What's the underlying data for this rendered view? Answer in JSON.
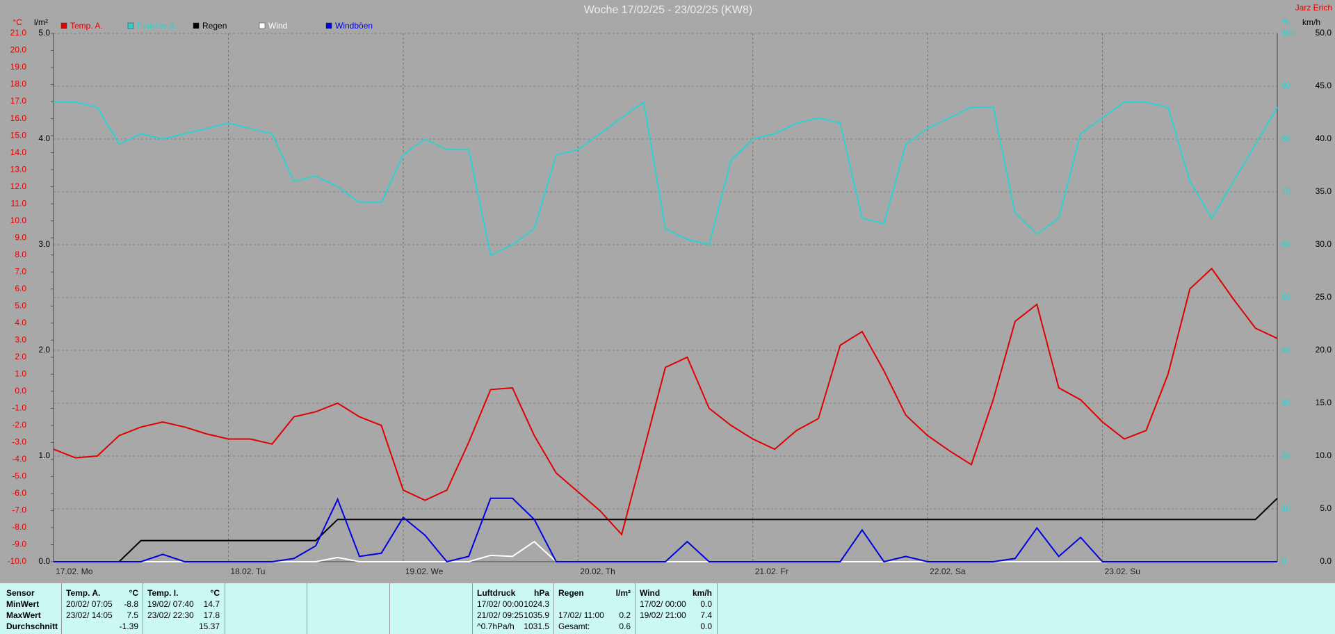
{
  "chart_data": {
    "type": "line",
    "title": "Woche 17/02/25 - 23/02/25 (KW8)",
    "author": "Jarz Erich",
    "ylabel": "°C",
    "rain_label": "l/m²",
    "humidity_label": "%",
    "y2label": "km/h",
    "x": [
      0,
      3,
      6,
      9,
      12,
      15,
      18,
      21,
      24,
      27,
      30,
      33,
      36,
      39,
      42,
      45,
      48,
      51,
      54,
      57,
      60,
      63,
      66,
      69,
      72,
      75,
      78,
      81,
      84,
      87,
      90,
      93,
      96,
      99,
      102,
      105,
      108,
      111,
      114,
      117,
      120,
      123,
      126,
      129,
      132,
      135,
      138,
      141,
      144,
      147,
      150,
      153,
      156,
      159,
      162,
      165,
      168
    ],
    "xlim": [
      0,
      168
    ],
    "xticks": [
      {
        "value": 0,
        "label": "17.02. Mo"
      },
      {
        "value": 24,
        "label": "18.02. Tu"
      },
      {
        "value": 48,
        "label": "19.02. We"
      },
      {
        "value": 72,
        "label": "20.02. Th"
      },
      {
        "value": 96,
        "label": "21.02. Fr"
      },
      {
        "value": 120,
        "label": "22.02. Sa"
      },
      {
        "value": 144,
        "label": "23.02. Su"
      }
    ],
    "ylim": [
      -10,
      21
    ],
    "yticks": [
      {
        "value": -10,
        "label": "-10.0"
      },
      {
        "value": -9,
        "label": "-9.0"
      },
      {
        "value": -8,
        "label": "-8.0"
      },
      {
        "value": -7,
        "label": "-7.0"
      },
      {
        "value": -6,
        "label": "-6.0"
      },
      {
        "value": -5,
        "label": "-5.0"
      },
      {
        "value": -4,
        "label": "-4.0"
      },
      {
        "value": -3,
        "label": "-3.0"
      },
      {
        "value": -2,
        "label": "-2.0"
      },
      {
        "value": -1,
        "label": "-1.0"
      },
      {
        "value": 0,
        "label": "0.0"
      },
      {
        "value": 1,
        "label": "1.0"
      },
      {
        "value": 2,
        "label": "2.0"
      },
      {
        "value": 3,
        "label": "3.0"
      },
      {
        "value": 4,
        "label": "4.0"
      },
      {
        "value": 5,
        "label": "5.0"
      },
      {
        "value": 6,
        "label": "6.0"
      },
      {
        "value": 7,
        "label": "7.0"
      },
      {
        "value": 8,
        "label": "8.0"
      },
      {
        "value": 9,
        "label": "9.0"
      },
      {
        "value": 10,
        "label": "10.0"
      },
      {
        "value": 11,
        "label": "11.0"
      },
      {
        "value": 12,
        "label": "12.0"
      },
      {
        "value": 13,
        "label": "13.0"
      },
      {
        "value": 14,
        "label": "14.0"
      },
      {
        "value": 15,
        "label": "15.0"
      },
      {
        "value": 16,
        "label": "16.0"
      },
      {
        "value": 17,
        "label": "17.0"
      },
      {
        "value": 18,
        "label": "18.0"
      },
      {
        "value": 19,
        "label": "19.0"
      },
      {
        "value": 20,
        "label": "20.0"
      },
      {
        "value": 21,
        "label": "21.0"
      }
    ],
    "rain_lim": [
      0,
      5
    ],
    "rain_ticks": [
      {
        "value": 0,
        "label": "0.0"
      },
      {
        "value": 1,
        "label": "1.0"
      },
      {
        "value": 2,
        "label": "2.0"
      },
      {
        "value": 3,
        "label": "3.0"
      },
      {
        "value": 4,
        "label": "4.0"
      },
      {
        "value": 5,
        "label": "5.0"
      }
    ],
    "humidity_lim": [
      0,
      100
    ],
    "humidity_ticks": [
      0,
      10,
      20,
      30,
      40,
      50,
      60,
      70,
      80,
      90,
      100
    ],
    "y2lim": [
      0,
      50
    ],
    "y2ticks": [
      {
        "value": 0,
        "label": "0.0"
      },
      {
        "value": 5,
        "label": "5.0"
      },
      {
        "value": 10,
        "label": "10.0"
      },
      {
        "value": 15,
        "label": "15.0"
      },
      {
        "value": 20,
        "label": "20.0"
      },
      {
        "value": 25,
        "label": "25.0"
      },
      {
        "value": 30,
        "label": "30.0"
      },
      {
        "value": 35,
        "label": "35.0"
      },
      {
        "value": 40,
        "label": "40.0"
      },
      {
        "value": 45,
        "label": "45.0"
      },
      {
        "value": 50,
        "label": "50.0"
      }
    ],
    "grid": true,
    "series": [
      {
        "name": "Temp. A.",
        "color": "#e00000",
        "axis": "y",
        "values": [
          -3.4,
          -3.9,
          -3.8,
          -2.6,
          -2.1,
          -1.8,
          -2.1,
          -2.5,
          -2.8,
          -2.8,
          -3.1,
          -1.5,
          -1.2,
          -0.7,
          -1.5,
          -2.0,
          -5.8,
          -6.4,
          -5.8,
          -3.0,
          0.1,
          0.2,
          -2.6,
          -4.8,
          -5.9,
          -7.0,
          -8.4,
          -3.5,
          1.4,
          2.0,
          -1.0,
          -2.0,
          -2.8,
          -3.4,
          -2.3,
          -1.6,
          2.7,
          3.5,
          1.2,
          -1.4,
          -2.6,
          -3.5,
          -4.3,
          -0.5,
          4.1,
          5.1,
          0.2,
          -0.5,
          -1.8,
          -2.8,
          -2.3,
          1.0,
          6.0,
          7.2,
          5.4,
          3.7,
          3.1
        ]
      },
      {
        "name": "Feuchte A.",
        "color": "#30d0d0",
        "axis": "humidity",
        "values": [
          87,
          87,
          86,
          79,
          81,
          80,
          81,
          82,
          83,
          82,
          81,
          72,
          73,
          71,
          68,
          68,
          77,
          80,
          78,
          78,
          58,
          60,
          63,
          77,
          78,
          81,
          84,
          87,
          63,
          61,
          60,
          76,
          80,
          81,
          83,
          84,
          83,
          65,
          64,
          79,
          82,
          84,
          86,
          86,
          66,
          62,
          65,
          81,
          84,
          87,
          87,
          86,
          72,
          65,
          72,
          79,
          86
        ]
      },
      {
        "name": "Regen",
        "color": "#000000",
        "axis": "rain",
        "values": [
          0,
          0,
          0,
          0,
          0.2,
          0.2,
          0.2,
          0.2,
          0.2,
          0.2,
          0.2,
          0.2,
          0.2,
          0.4,
          0.4,
          0.4,
          0.4,
          0.4,
          0.4,
          0.4,
          0.4,
          0.4,
          0.4,
          0.4,
          0.4,
          0.4,
          0.4,
          0.4,
          0.4,
          0.4,
          0.4,
          0.4,
          0.4,
          0.4,
          0.4,
          0.4,
          0.4,
          0.4,
          0.4,
          0.4,
          0.4,
          0.4,
          0.4,
          0.4,
          0.4,
          0.4,
          0.4,
          0.4,
          0.4,
          0.4,
          0.4,
          0.4,
          0.4,
          0.4,
          0.4,
          0.4,
          0.6
        ]
      },
      {
        "name": "Wind",
        "color": "#ffffff",
        "axis": "y2",
        "values": [
          0,
          0,
          0,
          0,
          0,
          0,
          0,
          0,
          0,
          0,
          0,
          0,
          0,
          0.4,
          0,
          0,
          0,
          0,
          0,
          0,
          0.6,
          0.5,
          1.9,
          0,
          0,
          0,
          0,
          0,
          0,
          0,
          0,
          0,
          0,
          0,
          0,
          0,
          0,
          0,
          0,
          0,
          0,
          0,
          0,
          0,
          0,
          0,
          0,
          0,
          0,
          0,
          0,
          0,
          0,
          0,
          0,
          0,
          0
        ]
      },
      {
        "name": "Windböen",
        "color": "#0000e0",
        "axis": "y2",
        "values": [
          0,
          0,
          0,
          0,
          0,
          0.7,
          0,
          0,
          0,
          0,
          0,
          0.3,
          1.5,
          5.9,
          0.5,
          0.8,
          4.2,
          2.5,
          0,
          0.5,
          6.0,
          6.0,
          4.0,
          0,
          0,
          0,
          0,
          0,
          0,
          1.9,
          0,
          0,
          0,
          0,
          0,
          0,
          0,
          3.0,
          0,
          0.5,
          0,
          0,
          0,
          0,
          0.3,
          3.2,
          0.5,
          2.3,
          0,
          0,
          0,
          0,
          0,
          0,
          0,
          0,
          0
        ]
      }
    ]
  },
  "footer": {
    "sensor_title": "Sensor",
    "row_labels": [
      "MinWert",
      "MaxWert",
      "Durchschnitt"
    ],
    "blocks": [
      {
        "title": "Temp. A.",
        "unit": "°C",
        "rows": [
          {
            "date": "20/02/ 07:05",
            "value": "-8.8"
          },
          {
            "date": "23/02/ 14:05",
            "value": "7.5"
          },
          {
            "value": "-1.39"
          }
        ]
      },
      {
        "title": "Temp. I.",
        "unit": "°C",
        "rows": [
          {
            "date": "19/02/ 07:40",
            "value": "14.7"
          },
          {
            "date": "23/02/ 22:30",
            "value": "17.8"
          },
          {
            "value": "15.37"
          }
        ]
      },
      {
        "title": "Luftdruck",
        "unit": "hPa",
        "rows": [
          {
            "date": "17/02/ 00:00",
            "value": "1024.3"
          },
          {
            "date": "21/02/ 09:25",
            "value": "1035.9"
          },
          {
            "date": "^0.7hPa/h",
            "value": "1031.5"
          }
        ]
      },
      {
        "title": "Regen",
        "unit": "l/m²",
        "rows": [
          {},
          {
            "date": "17/02/ 11:00",
            "value": "0.2"
          },
          {
            "date": "Gesamt:",
            "value": "0.6"
          }
        ]
      },
      {
        "title": "Wind",
        "unit": "km/h",
        "rows": [
          {
            "date": "17/02/ 00:00",
            "value": "0.0"
          },
          {
            "date": "19/02/ 21:00",
            "value": "7.4"
          },
          {
            "value": "0.0"
          }
        ]
      }
    ]
  }
}
